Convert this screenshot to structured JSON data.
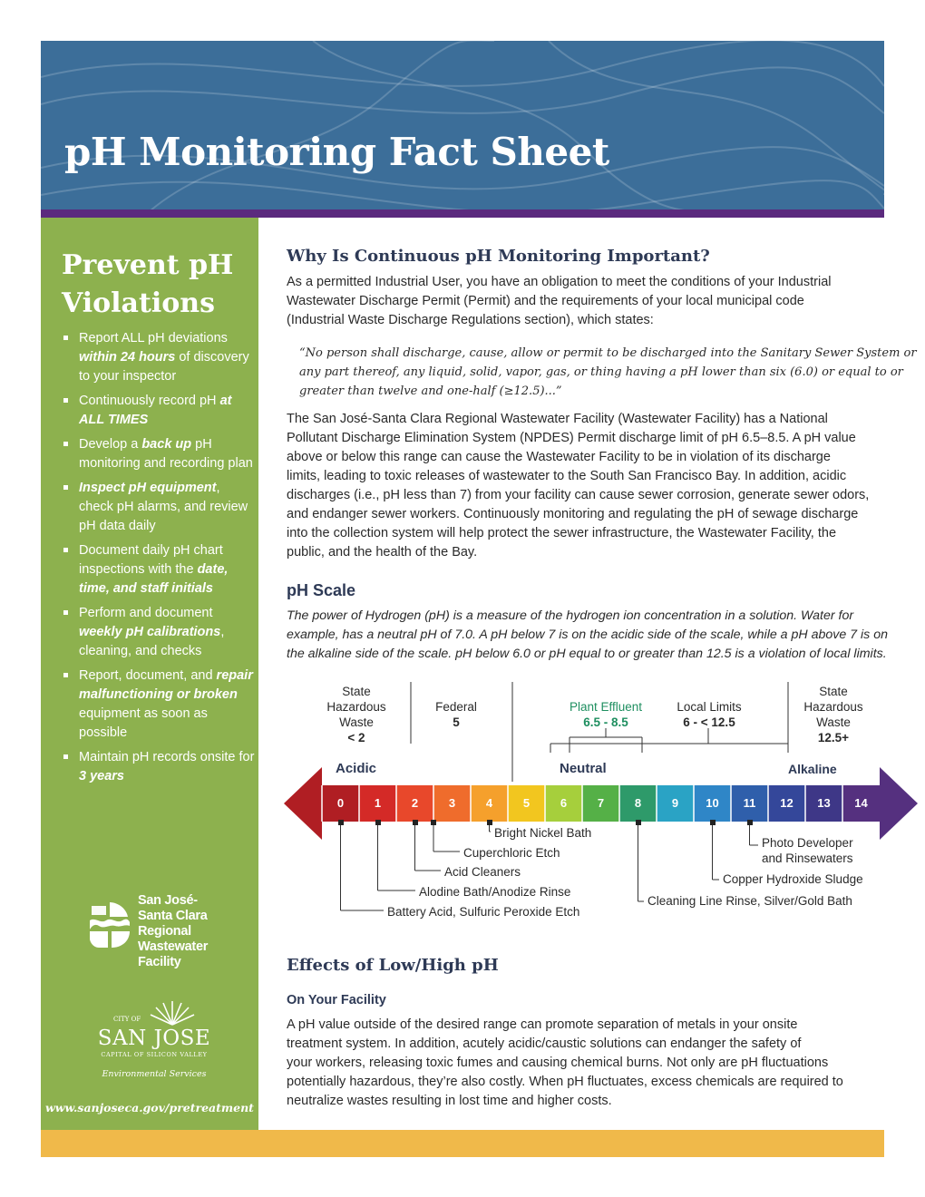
{
  "header": {
    "title": "pH Monitoring Fact Sheet"
  },
  "sidebar": {
    "title_line1": "Prevent pH",
    "title_line2": "Violations",
    "items": [
      {
        "pre": "Report ALL pH deviations ",
        "em": "within 24 hours",
        "post": " of discovery to your inspector"
      },
      {
        "pre": "Continuously record pH ",
        "em": "at ALL TIMES",
        "post": ""
      },
      {
        "pre": "Develop a ",
        "em": "back up",
        "post": " pH monitoring and recording plan"
      },
      {
        "pre": "",
        "em": "Inspect pH equipment",
        "post": ", check pH alarms, and review pH data daily"
      },
      {
        "pre": "Document daily pH chart inspections with the ",
        "em": "date, time, and staff initials",
        "post": ""
      },
      {
        "pre": "Perform and document ",
        "em": "weekly pH calibrations",
        "post": ", cleaning, and checks"
      },
      {
        "pre": "Report, document, and ",
        "em": "repair malfunctioning or broken",
        "post": " equipment as soon as possible"
      },
      {
        "pre": "Maintain pH records onsite for ",
        "em": "3 years",
        "post": ""
      }
    ],
    "facility_logo": {
      "line1": "San José-",
      "line2": "Santa Clara",
      "line3": "Regional",
      "line4": "Wastewater",
      "line5": "Facility"
    },
    "city_logo": {
      "city_of": "CITY OF",
      "name": "SAN JOSE",
      "tagline": "CAPITAL OF SILICON VALLEY",
      "department": "Environmental Services"
    },
    "website": "www.sanjoseca.gov/pretreatment"
  },
  "section1": {
    "heading": "Why Is Continuous pH Monitoring Important?",
    "intro_lines": [
      "As a permitted Industrial User, you have an obligation to meet the conditions of your Industrial",
      "Wastewater Discharge Permit (Permit) and the requirements of your local municipal code",
      "(Industrial Waste Discharge Regulations section), which states:"
    ],
    "quote_lines": [
      "“No person shall discharge, cause, allow or permit to be discharged into the Sanitary Sewer System or",
      "any part thereof, any liquid, solid, vapor, gas, or thing having a pH lower than six (6.0) or equal to or",
      "greater than twelve and one-half (≥12.5)...”"
    ],
    "body_lines": [
      "The San José-Santa Clara Regional Wastewater Facility (Wastewater Facility) has a National",
      "Pollutant Discharge Elimination System (NPDES) Permit discharge limit of pH 6.5–8.5. A pH value",
      "above or below this range can cause the Wastewater Facility to be in violation of its discharge",
      "limits, leading to toxic releases of wastewater to the South San Francisco Bay. In addition, acidic",
      "discharges (i.e., pH less than 7) from your facility can cause sewer corrosion, generate sewer odors,",
      "and endanger sewer workers. Continuously monitoring and regulating the pH of sewage discharge",
      "into the collection system will help protect the sewer infrastructure, the Wastewater Facility, the",
      "public, and the health of the Bay."
    ]
  },
  "section2": {
    "heading": "pH Scale",
    "intro_lines": [
      "The power of Hydrogen (pH) is a measure of the hydrogen ion concentration in a solution. Water for",
      "example, has a neutral pH of 7.0. A pH below 7 is on the acidic side of the scale, while a pH above 7 is on",
      "the alkaline side of the scale. pH below 6.0 or pH equal to or greater than 12.5 is a violation of local limits."
    ],
    "limits": [
      {
        "label": "State Hazardous Waste",
        "l1": "State",
        "l2": "Hazardous",
        "l3": "Waste",
        "value": "< 2"
      },
      {
        "label": "Federal",
        "value": "5"
      },
      {
        "label": "Plant Effluent",
        "value": "6.5 - 8.5",
        "color": "#1f8f60"
      },
      {
        "label": "Local Limits",
        "value": "6 - < 12.5"
      },
      {
        "label": "State Hazardous Waste",
        "l1": "State",
        "l2": "Hazardous",
        "l3": "Waste",
        "value": "12.5+"
      }
    ],
    "regions": {
      "acidic": "Acidic",
      "neutral": "Neutral",
      "alkaline": "Alkaline"
    },
    "scale": [
      {
        "ph": "0",
        "color": "#b01e23"
      },
      {
        "ph": "1",
        "color": "#d42a27"
      },
      {
        "ph": "2",
        "color": "#e8482b"
      },
      {
        "ph": "3",
        "color": "#ef6c2c"
      },
      {
        "ph": "4",
        "color": "#f5a02c"
      },
      {
        "ph": "5",
        "color": "#f2c61f"
      },
      {
        "ph": "6",
        "color": "#a6cf3c"
      },
      {
        "ph": "7",
        "color": "#55b047"
      },
      {
        "ph": "8",
        "color": "#2e9a6a"
      },
      {
        "ph": "9",
        "color": "#2aa3c5"
      },
      {
        "ph": "10",
        "color": "#2f86c7"
      },
      {
        "ph": "11",
        "color": "#2f5fab"
      },
      {
        "ph": "12",
        "color": "#34479a"
      },
      {
        "ph": "13",
        "color": "#3e3787"
      },
      {
        "ph": "14",
        "color": "#55307f"
      }
    ],
    "examples": [
      {
        "name": "Bright Nickel Bath",
        "ph": 4
      },
      {
        "name": "Cuperchloric Etch",
        "ph": 2.5
      },
      {
        "name": "Acid Cleaners",
        "ph": 2
      },
      {
        "name": "Alodine Bath/Anodize Rinse",
        "ph": 1
      },
      {
        "name": "Battery Acid, Sulfuric Peroxide Etch",
        "ph": 0
      },
      {
        "name": "Photo Developer and Rinsewaters",
        "l1": "Photo Developer",
        "l2": "and Rinsewaters",
        "ph": 11
      },
      {
        "name": "Copper Hydroxide Sludge",
        "ph": 10
      },
      {
        "name": "Cleaning Line Rinse, Silver/Gold Bath",
        "ph": 8
      }
    ]
  },
  "section3": {
    "heading": "Effects of Low/High pH",
    "subheading": "On Your Facility",
    "body_lines": [
      "A pH value outside of the desired range can promote separation of metals in your onsite",
      "treatment system. In addition, acutely acidic/caustic solutions can endanger the safety of",
      "your workers, releasing toxic fumes and causing chemical burns. Not only are pH fluctuations",
      "potentially hazardous, they’re also costly. When pH fluctuates, excess chemicals are required to",
      "neutralize wastes resulting in lost time and higher costs."
    ]
  }
}
